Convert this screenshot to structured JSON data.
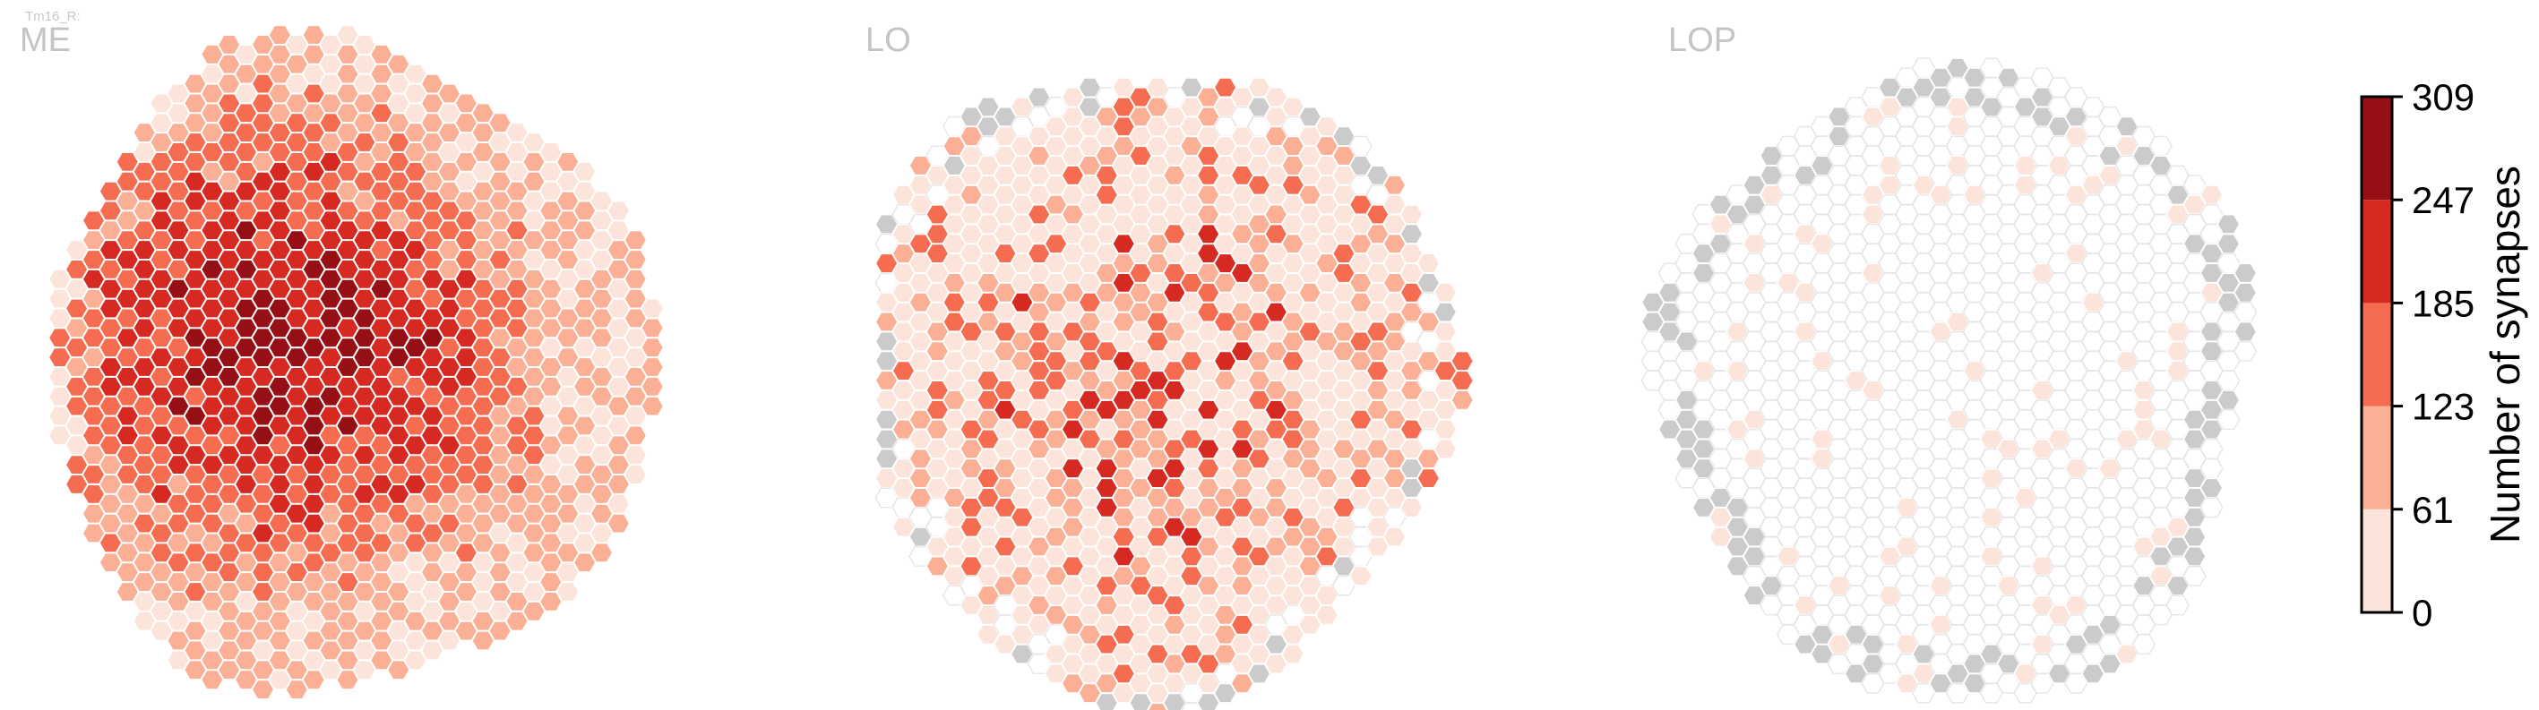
{
  "figure": {
    "cell_type": "Tm16_R:",
    "panels": [
      "ME",
      "LO",
      "LOP"
    ]
  },
  "colorbar": {
    "label": "Number of synapses",
    "ticks": [
      "0",
      "61",
      "123",
      "185",
      "247",
      "309"
    ]
  },
  "colors": {
    "bins": [
      "#fde4da",
      "#fbb096",
      "#f56c50",
      "#d52922",
      "#960f15"
    ],
    "no_data": "#cbcbcb",
    "zero": "#ffffff",
    "hex_stroke": "#ffffff",
    "zero_stroke": "#e6e6e6"
  },
  "chart_data": {
    "type": "heatmap",
    "title": "Tm16_R:",
    "description_of_encoding": "Hexagonal column maps of the optic lobe; each hexagon is a column colored by synapse count bin.",
    "value_range": [
      0,
      309
    ],
    "bin_edges": [
      0,
      61,
      123,
      185,
      247,
      309
    ],
    "panels": [
      {
        "name": "ME",
        "dominant_range": [
          61,
          309
        ],
        "max_region": "center-left"
      },
      {
        "name": "LO",
        "dominant_range": [
          0,
          185
        ],
        "max_region": "center"
      },
      {
        "name": "LOP",
        "dominant_range": [
          0,
          61
        ],
        "max_region": "sparse"
      }
    ]
  }
}
